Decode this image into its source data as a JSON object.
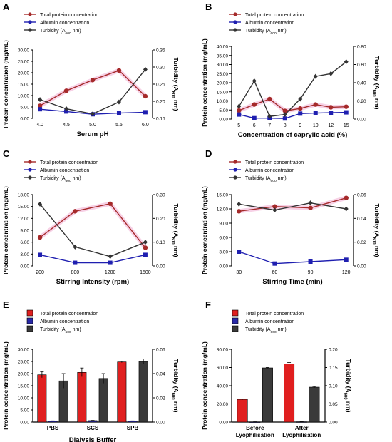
{
  "chart_data": [
    {
      "panel": "A",
      "type": "line",
      "x": [
        "4.0",
        "4.5",
        "5.0",
        "5.5",
        "6.0"
      ],
      "xlabel": "Serum pH",
      "ylabel": "Protein concentration (mg/mL)",
      "ylabel2": "Turbidity (A600 nm)",
      "ylim": [
        0,
        30
      ],
      "yticks": [
        "0.00",
        "5.00",
        "10.00",
        "15.00",
        "20.00",
        "25.00",
        "30.00"
      ],
      "ylim2": [
        0.15,
        0.35
      ],
      "yticks2": [
        "0.15",
        "0.20",
        "0.25",
        "0.30",
        "0.35"
      ],
      "series": [
        {
          "name": "Total protein concentration",
          "axis": "left",
          "color": "#a52a2a",
          "values": [
            5.5,
            12.1,
            16.8,
            21.0,
            9.7
          ]
        },
        {
          "name": "Albumin concentration",
          "axis": "left",
          "color": "#1f1fb0",
          "values": [
            4.0,
            3.0,
            1.8,
            2.3,
            2.7
          ]
        },
        {
          "name": "Turbidity (A600 nm)",
          "axis": "right",
          "color": "#333333",
          "values": [
            0.205,
            0.178,
            0.163,
            0.198,
            0.293
          ]
        }
      ]
    },
    {
      "panel": "B",
      "type": "line",
      "x": [
        "5",
        "6",
        "7",
        "8",
        "9",
        "10",
        "12",
        "15"
      ],
      "xlabel": "Concentration of caprylic acid (%)",
      "ylabel": "Protein concentration (mg/mL)",
      "ylabel2": "Turbidity (A600 nm)",
      "ylim": [
        0,
        40
      ],
      "yticks": [
        "0.00",
        "5.00",
        "10.00",
        "15.00",
        "20.00",
        "25.00",
        "30.00",
        "35.00",
        "40.00"
      ],
      "ylim2": [
        0,
        0.8
      ],
      "yticks2": [
        "0.00",
        "0.20",
        "0.40",
        "0.60",
        "0.80"
      ],
      "series": [
        {
          "name": "Total protein concentration",
          "axis": "left",
          "color": "#a52a2a",
          "values": [
            4.7,
            8.0,
            11.0,
            4.5,
            5.8,
            8.0,
            6.5,
            6.8
          ]
        },
        {
          "name": "Albumin concentration",
          "axis": "left",
          "color": "#1f1fb0",
          "values": [
            2.5,
            0.5,
            0.5,
            0.3,
            3.0,
            3.3,
            3.5,
            3.7
          ]
        },
        {
          "name": "Turbidity (A600 nm)",
          "axis": "right",
          "color": "#333333",
          "values": [
            0.14,
            0.42,
            0.03,
            0.05,
            0.22,
            0.47,
            0.5,
            0.63
          ]
        }
      ]
    },
    {
      "panel": "C",
      "type": "line",
      "x": [
        "200",
        "800",
        "1200",
        "1500"
      ],
      "xlabel": "Stirring Intensity (rpm)",
      "ylabel": "Protein concentration (mg/mL)",
      "ylabel2": "Turbidity (A600 nm)",
      "ylim": [
        0,
        18
      ],
      "yticks": [
        "0.00",
        "3.00",
        "6.00",
        "9.00",
        "12.00",
        "15.00",
        "18.00"
      ],
      "ylim2": [
        0,
        0.3
      ],
      "yticks2": [
        "0.00",
        "0.10",
        "0.20",
        "0.30"
      ],
      "series": [
        {
          "name": "Total protein concentration",
          "axis": "left",
          "color": "#a52a2a",
          "values": [
            7.2,
            13.8,
            15.7,
            4.6
          ]
        },
        {
          "name": "Albumin concentration",
          "axis": "left",
          "color": "#1f1fb0",
          "values": [
            2.8,
            0.8,
            0.8,
            2.8
          ]
        },
        {
          "name": "Turbidity (A600 nm)",
          "axis": "right",
          "color": "#333333",
          "values": [
            0.26,
            0.08,
            0.04,
            0.1
          ]
        }
      ]
    },
    {
      "panel": "D",
      "type": "line",
      "x": [
        "30",
        "60",
        "90",
        "120"
      ],
      "xlabel": "Stirring Time (min)",
      "ylabel": "Protein concentration (mg/mL)",
      "ylabel2": "Turbidity (A600 nm)",
      "ylim": [
        0,
        15
      ],
      "yticks": [
        "0.00",
        "3.00",
        "6.00",
        "9.00",
        "12.00",
        "15.00"
      ],
      "ylim2": [
        0,
        0.06
      ],
      "yticks2": [
        "0.00",
        "0.02",
        "0.04",
        "0.06"
      ],
      "series": [
        {
          "name": "Total protein concentration",
          "axis": "left",
          "color": "#a52a2a",
          "values": [
            11.5,
            12.5,
            12.2,
            14.3
          ]
        },
        {
          "name": "Albumin concentration",
          "axis": "left",
          "color": "#1f1fb0",
          "values": [
            3.0,
            0.5,
            0.9,
            1.3
          ]
        },
        {
          "name": "Turbidity (A600 nm)",
          "axis": "right",
          "color": "#333333",
          "values": [
            0.052,
            0.047,
            0.053,
            0.048
          ]
        }
      ]
    },
    {
      "panel": "E",
      "type": "bar",
      "categories": [
        "PBS",
        "SCS",
        "SPB"
      ],
      "xlabel": "Dialysis Buffer",
      "ylabel": "Protein concentration (mg/mL)",
      "ylabel2": "Turbidity (A600 nm)",
      "ylim": [
        0,
        30
      ],
      "yticks": [
        "0.00",
        "5.00",
        "10.00",
        "15.00",
        "20.00",
        "25.00",
        "30.00"
      ],
      "ylim2": [
        0,
        0.06
      ],
      "yticks2": [
        "0.00",
        "0.02",
        "0.04",
        "0.06"
      ],
      "series": [
        {
          "name": "Total protein concentration",
          "axis": "left",
          "color": "#e01f1f",
          "values": [
            19.5,
            20.5,
            24.8
          ],
          "errors": [
            1.2,
            1.8,
            0.3
          ]
        },
        {
          "name": "Albumin concentration",
          "axis": "left",
          "color": "#2828a8",
          "values": [
            0.4,
            0.6,
            0.4
          ],
          "errors": [
            0.1,
            0.1,
            0.1
          ]
        },
        {
          "name": "Turbidity (A600 nm)",
          "axis": "right",
          "color": "#3a3a3a",
          "values": [
            0.034,
            0.036,
            0.05
          ],
          "errors": [
            0.006,
            0.004,
            0.002
          ]
        }
      ]
    },
    {
      "panel": "F",
      "type": "bar",
      "categories": [
        "Before Lyophilisation",
        "After Lyophilisation"
      ],
      "xlabel": "",
      "ylabel": "Protein concentration (mg/mL)",
      "ylabel2": "Turbidity (A600 nm)",
      "ylim": [
        0,
        80
      ],
      "yticks": [
        "0.00",
        "20.00",
        "40.00",
        "60.00",
        "80.00"
      ],
      "ylim2": [
        0,
        0.2
      ],
      "yticks2": [
        "0.00",
        "0.05",
        "0.10",
        "0.15",
        "0.20"
      ],
      "series": [
        {
          "name": "Total protein concentration",
          "axis": "left",
          "color": "#e01f1f",
          "values": [
            25.0,
            64.0
          ],
          "errors": [
            0.5,
            1.5
          ]
        },
        {
          "name": "Albumin concentration",
          "axis": "left",
          "color": "#2828a8",
          "values": [
            0.2,
            0.3
          ],
          "errors": [
            0.1,
            0.1
          ]
        },
        {
          "name": "Turbidity (A600 nm)",
          "axis": "right",
          "color": "#3a3a3a",
          "values": [
            0.149,
            0.096
          ],
          "errors": [
            0.001,
            0.002
          ]
        }
      ]
    }
  ]
}
